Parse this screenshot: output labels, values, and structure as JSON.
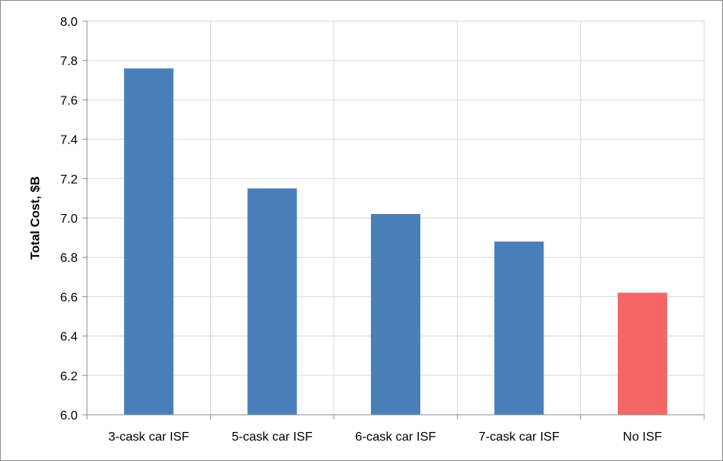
{
  "chart_data": {
    "type": "bar",
    "title": "",
    "xlabel": "",
    "ylabel": "Total Cost, $B",
    "categories": [
      "3-cask car ISF",
      "5-cask car ISF",
      "6-cask car ISF",
      "7-cask car ISF",
      "No ISF"
    ],
    "values": [
      7.76,
      7.15,
      7.02,
      6.88,
      6.62
    ],
    "bar_colors": [
      "#4a7fba",
      "#4a7fba",
      "#4a7fba",
      "#4a7fba",
      "#f46666"
    ],
    "ylim": [
      6.0,
      8.0
    ],
    "yticks": [
      "6.0",
      "6.2",
      "6.4",
      "6.6",
      "6.8",
      "7.0",
      "7.2",
      "7.4",
      "7.6",
      "7.8",
      "8.0"
    ],
    "grid": true,
    "legend": "none",
    "colors": {
      "grid": "#d9d9d9",
      "axis": "#8c8c8c"
    }
  }
}
